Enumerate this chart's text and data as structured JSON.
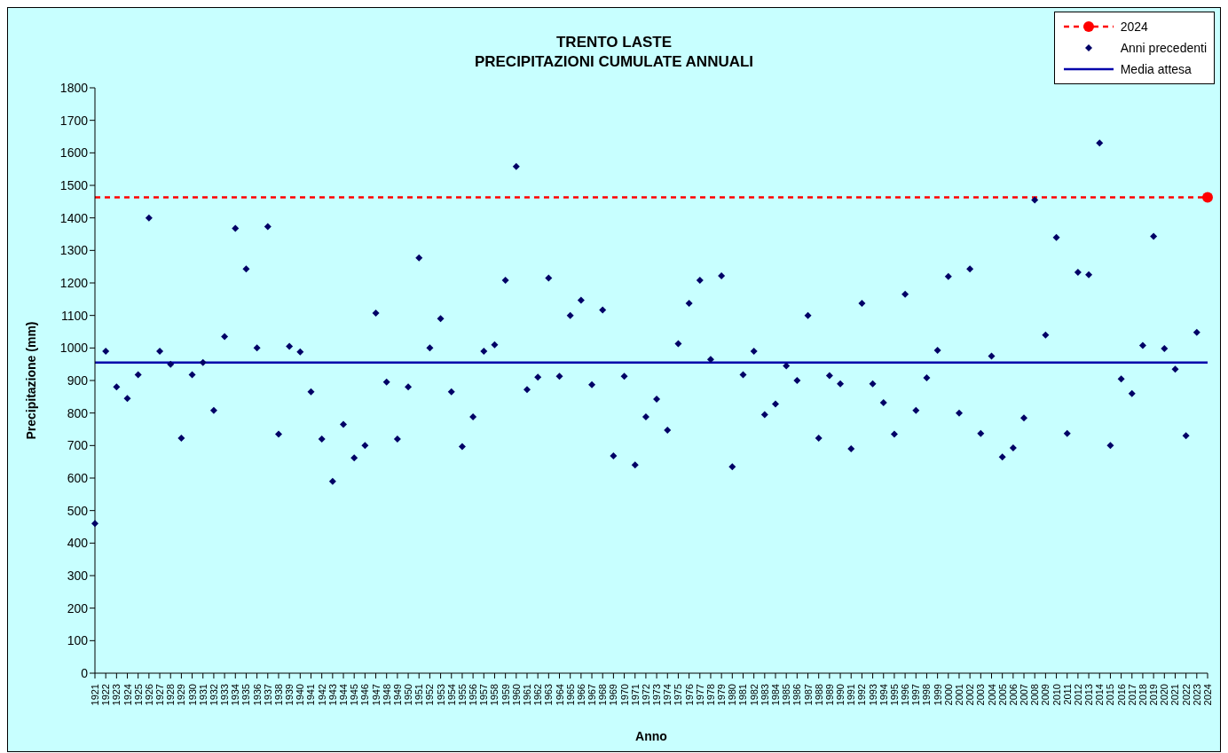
{
  "chart_data": {
    "type": "scatter",
    "title": "TRENTO LASTE",
    "subtitle": "PRECIPITAZIONI CUMULATE ANNUALI",
    "xlabel": "Anno",
    "ylabel": "Precipitazione (mm)",
    "categories": [
      "1921",
      "1922",
      "1923",
      "1924",
      "1925",
      "1926",
      "1927",
      "1928",
      "1929",
      "1930",
      "1931",
      "1932",
      "1933",
      "1934",
      "1935",
      "1936",
      "1937",
      "1938",
      "1939",
      "1940",
      "1941",
      "1942",
      "1943",
      "1944",
      "1945",
      "1946",
      "1947",
      "1948",
      "1949",
      "1950",
      "1951",
      "1952",
      "1953",
      "1954",
      "1955",
      "1956",
      "1957",
      "1958",
      "1959",
      "1960",
      "1961",
      "1962",
      "1963",
      "1964",
      "1965",
      "1966",
      "1967",
      "1968",
      "1969",
      "1970",
      "1971",
      "1972",
      "1973",
      "1974",
      "1975",
      "1976",
      "1977",
      "1978",
      "1979",
      "1980",
      "1981",
      "1982",
      "1983",
      "1984",
      "1985",
      "1986",
      "1987",
      "1988",
      "1989",
      "1990",
      "1991",
      "1992",
      "1993",
      "1994",
      "1995",
      "1996",
      "1997",
      "1998",
      "1999",
      "2000",
      "2001",
      "2002",
      "2003",
      "2004",
      "2005",
      "2006",
      "2007",
      "2008",
      "2009",
      "2010",
      "2011",
      "2012",
      "2013",
      "2014",
      "2015",
      "2016",
      "2017",
      "2018",
      "2019",
      "2020",
      "2021",
      "2022",
      "2023",
      "2024"
    ],
    "series": [
      {
        "name": "2024",
        "color": "#ff0000",
        "marker": "circle",
        "line_style": "dashed",
        "values": [
          null,
          null,
          null,
          null,
          null,
          null,
          null,
          null,
          null,
          null,
          null,
          null,
          null,
          null,
          null,
          null,
          null,
          null,
          null,
          null,
          null,
          null,
          null,
          null,
          null,
          null,
          null,
          null,
          null,
          null,
          null,
          null,
          null,
          null,
          null,
          null,
          null,
          null,
          null,
          null,
          null,
          null,
          null,
          null,
          null,
          null,
          null,
          null,
          null,
          null,
          null,
          null,
          null,
          null,
          null,
          null,
          null,
          null,
          null,
          null,
          null,
          null,
          null,
          null,
          null,
          null,
          null,
          null,
          null,
          null,
          null,
          null,
          null,
          null,
          null,
          null,
          null,
          null,
          null,
          null,
          null,
          null,
          null,
          null,
          null,
          null,
          null,
          null,
          null,
          null,
          null,
          null,
          null,
          null,
          null,
          null,
          null,
          null,
          null,
          null,
          null,
          null,
          null,
          1463
        ]
      },
      {
        "name": "Anni precedenti",
        "color": "#000066",
        "marker": "diamond",
        "values": [
          460,
          990,
          880,
          845,
          918,
          1400,
          990,
          950,
          723,
          918,
          955,
          808,
          1035,
          1368,
          1243,
          1000,
          1373,
          735,
          1005,
          988,
          865,
          720,
          590,
          765,
          662,
          700,
          1107,
          895,
          720,
          880,
          1277,
          1000,
          1090,
          865,
          697,
          788,
          990,
          1010,
          1208,
          1558,
          872,
          910,
          1215,
          913,
          1100,
          1147,
          887,
          1117,
          668,
          913,
          640,
          788,
          843,
          747,
          1013,
          1137,
          1208,
          965,
          1222,
          635,
          918,
          990,
          795,
          828,
          945,
          900,
          1100,
          723,
          915,
          890,
          690,
          1137,
          890,
          832,
          735,
          1165,
          808,
          908,
          993,
          1220,
          800,
          1243,
          737,
          975,
          665,
          693,
          785,
          1455,
          1040,
          1340,
          737,
          1233,
          1225,
          1630,
          700,
          905,
          860,
          1008,
          1343,
          998,
          935,
          730,
          1048,
          null
        ]
      }
    ],
    "ref_lines": [
      {
        "axis": "y",
        "value": 1463,
        "color": "#ff0000",
        "line_style": "dashed"
      },
      {
        "axis": "y",
        "value": 955,
        "label": "Media attesa",
        "color": "#0000aa",
        "line_style": "solid"
      }
    ],
    "ylim": [
      0,
      1800
    ],
    "yticks": [
      0,
      100,
      200,
      300,
      400,
      500,
      600,
      700,
      800,
      900,
      1000,
      1100,
      1200,
      1300,
      1400,
      1500,
      1600,
      1700,
      1800
    ],
    "legend": "top right"
  }
}
